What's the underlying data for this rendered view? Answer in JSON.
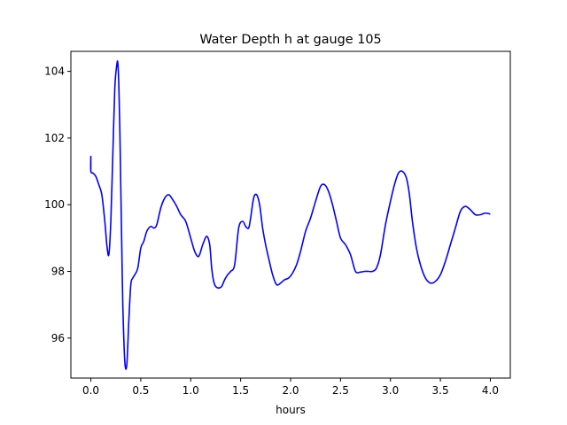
{
  "chart_data": {
    "type": "line",
    "title": "Water Depth h at gauge 105",
    "xlabel": "hours",
    "ylabel": "",
    "xlim": [
      -0.2,
      4.2
    ],
    "ylim": [
      94.8,
      104.6
    ],
    "xticks": [
      0.0,
      0.5,
      1.0,
      1.5,
      2.0,
      2.5,
      3.0,
      3.5,
      4.0
    ],
    "xtick_labels": [
      "0.0",
      "0.5",
      "1.0",
      "1.5",
      "2.0",
      "2.5",
      "3.0",
      "3.5",
      "4.0"
    ],
    "yticks": [
      96,
      98,
      100,
      102,
      104
    ],
    "ytick_labels": [
      "96",
      "98",
      "100",
      "102",
      "104"
    ],
    "grid": false,
    "series": [
      {
        "color": "#0000ff",
        "x": [
          0.0,
          0.0,
          0.0,
          0.02,
          0.05,
          0.08,
          0.11,
          0.14,
          0.16,
          0.18,
          0.2,
          0.22,
          0.24,
          0.26,
          0.27,
          0.28,
          0.29,
          0.3,
          0.31,
          0.32,
          0.34,
          0.36,
          0.38,
          0.4,
          0.42,
          0.44,
          0.47,
          0.5,
          0.53,
          0.56,
          0.6,
          0.63,
          0.66,
          0.7,
          0.74,
          0.78,
          0.82,
          0.86,
          0.9,
          0.95,
          1.0,
          1.04,
          1.08,
          1.12,
          1.16,
          1.19,
          1.21,
          1.23,
          1.25,
          1.28,
          1.31,
          1.34,
          1.37,
          1.4,
          1.44,
          1.48,
          1.52,
          1.55,
          1.58,
          1.6,
          1.63,
          1.66,
          1.69,
          1.72,
          1.75,
          1.78,
          1.82,
          1.86,
          1.9,
          1.94,
          1.98,
          2.02,
          2.06,
          2.1,
          2.15,
          2.2,
          2.25,
          2.3,
          2.34,
          2.38,
          2.42,
          2.46,
          2.5,
          2.55,
          2.6,
          2.65,
          2.7,
          2.74,
          2.78,
          2.82,
          2.86,
          2.9,
          2.95,
          3.0,
          3.04,
          3.08,
          3.12,
          3.16,
          3.19,
          3.22,
          3.26,
          3.3,
          3.35,
          3.4,
          3.45,
          3.5,
          3.55,
          3.6,
          3.65,
          3.7,
          3.75,
          3.8,
          3.85,
          3.9,
          3.95,
          4.0
        ],
        "y": [
          101.0,
          101.45,
          101.0,
          100.95,
          100.85,
          100.6,
          100.3,
          99.5,
          98.8,
          98.5,
          99.5,
          101.5,
          103.5,
          104.2,
          104.25,
          103.6,
          102.3,
          100.5,
          98.7,
          97.0,
          95.3,
          95.2,
          96.5,
          97.6,
          97.8,
          97.9,
          98.1,
          98.7,
          98.9,
          99.2,
          99.35,
          99.3,
          99.4,
          99.9,
          100.2,
          100.3,
          100.15,
          99.95,
          99.7,
          99.5,
          99.0,
          98.6,
          98.45,
          98.8,
          99.05,
          98.8,
          98.1,
          97.7,
          97.55,
          97.5,
          97.55,
          97.75,
          97.9,
          98.0,
          98.2,
          99.3,
          99.5,
          99.35,
          99.3,
          99.6,
          100.2,
          100.3,
          100.0,
          99.3,
          98.8,
          98.4,
          97.9,
          97.6,
          97.65,
          97.75,
          97.8,
          97.95,
          98.2,
          98.6,
          99.2,
          99.6,
          100.1,
          100.55,
          100.6,
          100.4,
          100.0,
          99.5,
          99.0,
          98.8,
          98.5,
          98.0,
          97.98,
          98.0,
          98.0,
          98.0,
          98.1,
          98.5,
          99.4,
          100.1,
          100.6,
          100.95,
          101.0,
          100.8,
          100.3,
          99.5,
          98.7,
          98.2,
          97.8,
          97.65,
          97.7,
          97.9,
          98.3,
          98.8,
          99.3,
          99.8,
          99.95,
          99.85,
          99.7,
          99.7,
          99.75,
          99.72
        ]
      }
    ]
  }
}
